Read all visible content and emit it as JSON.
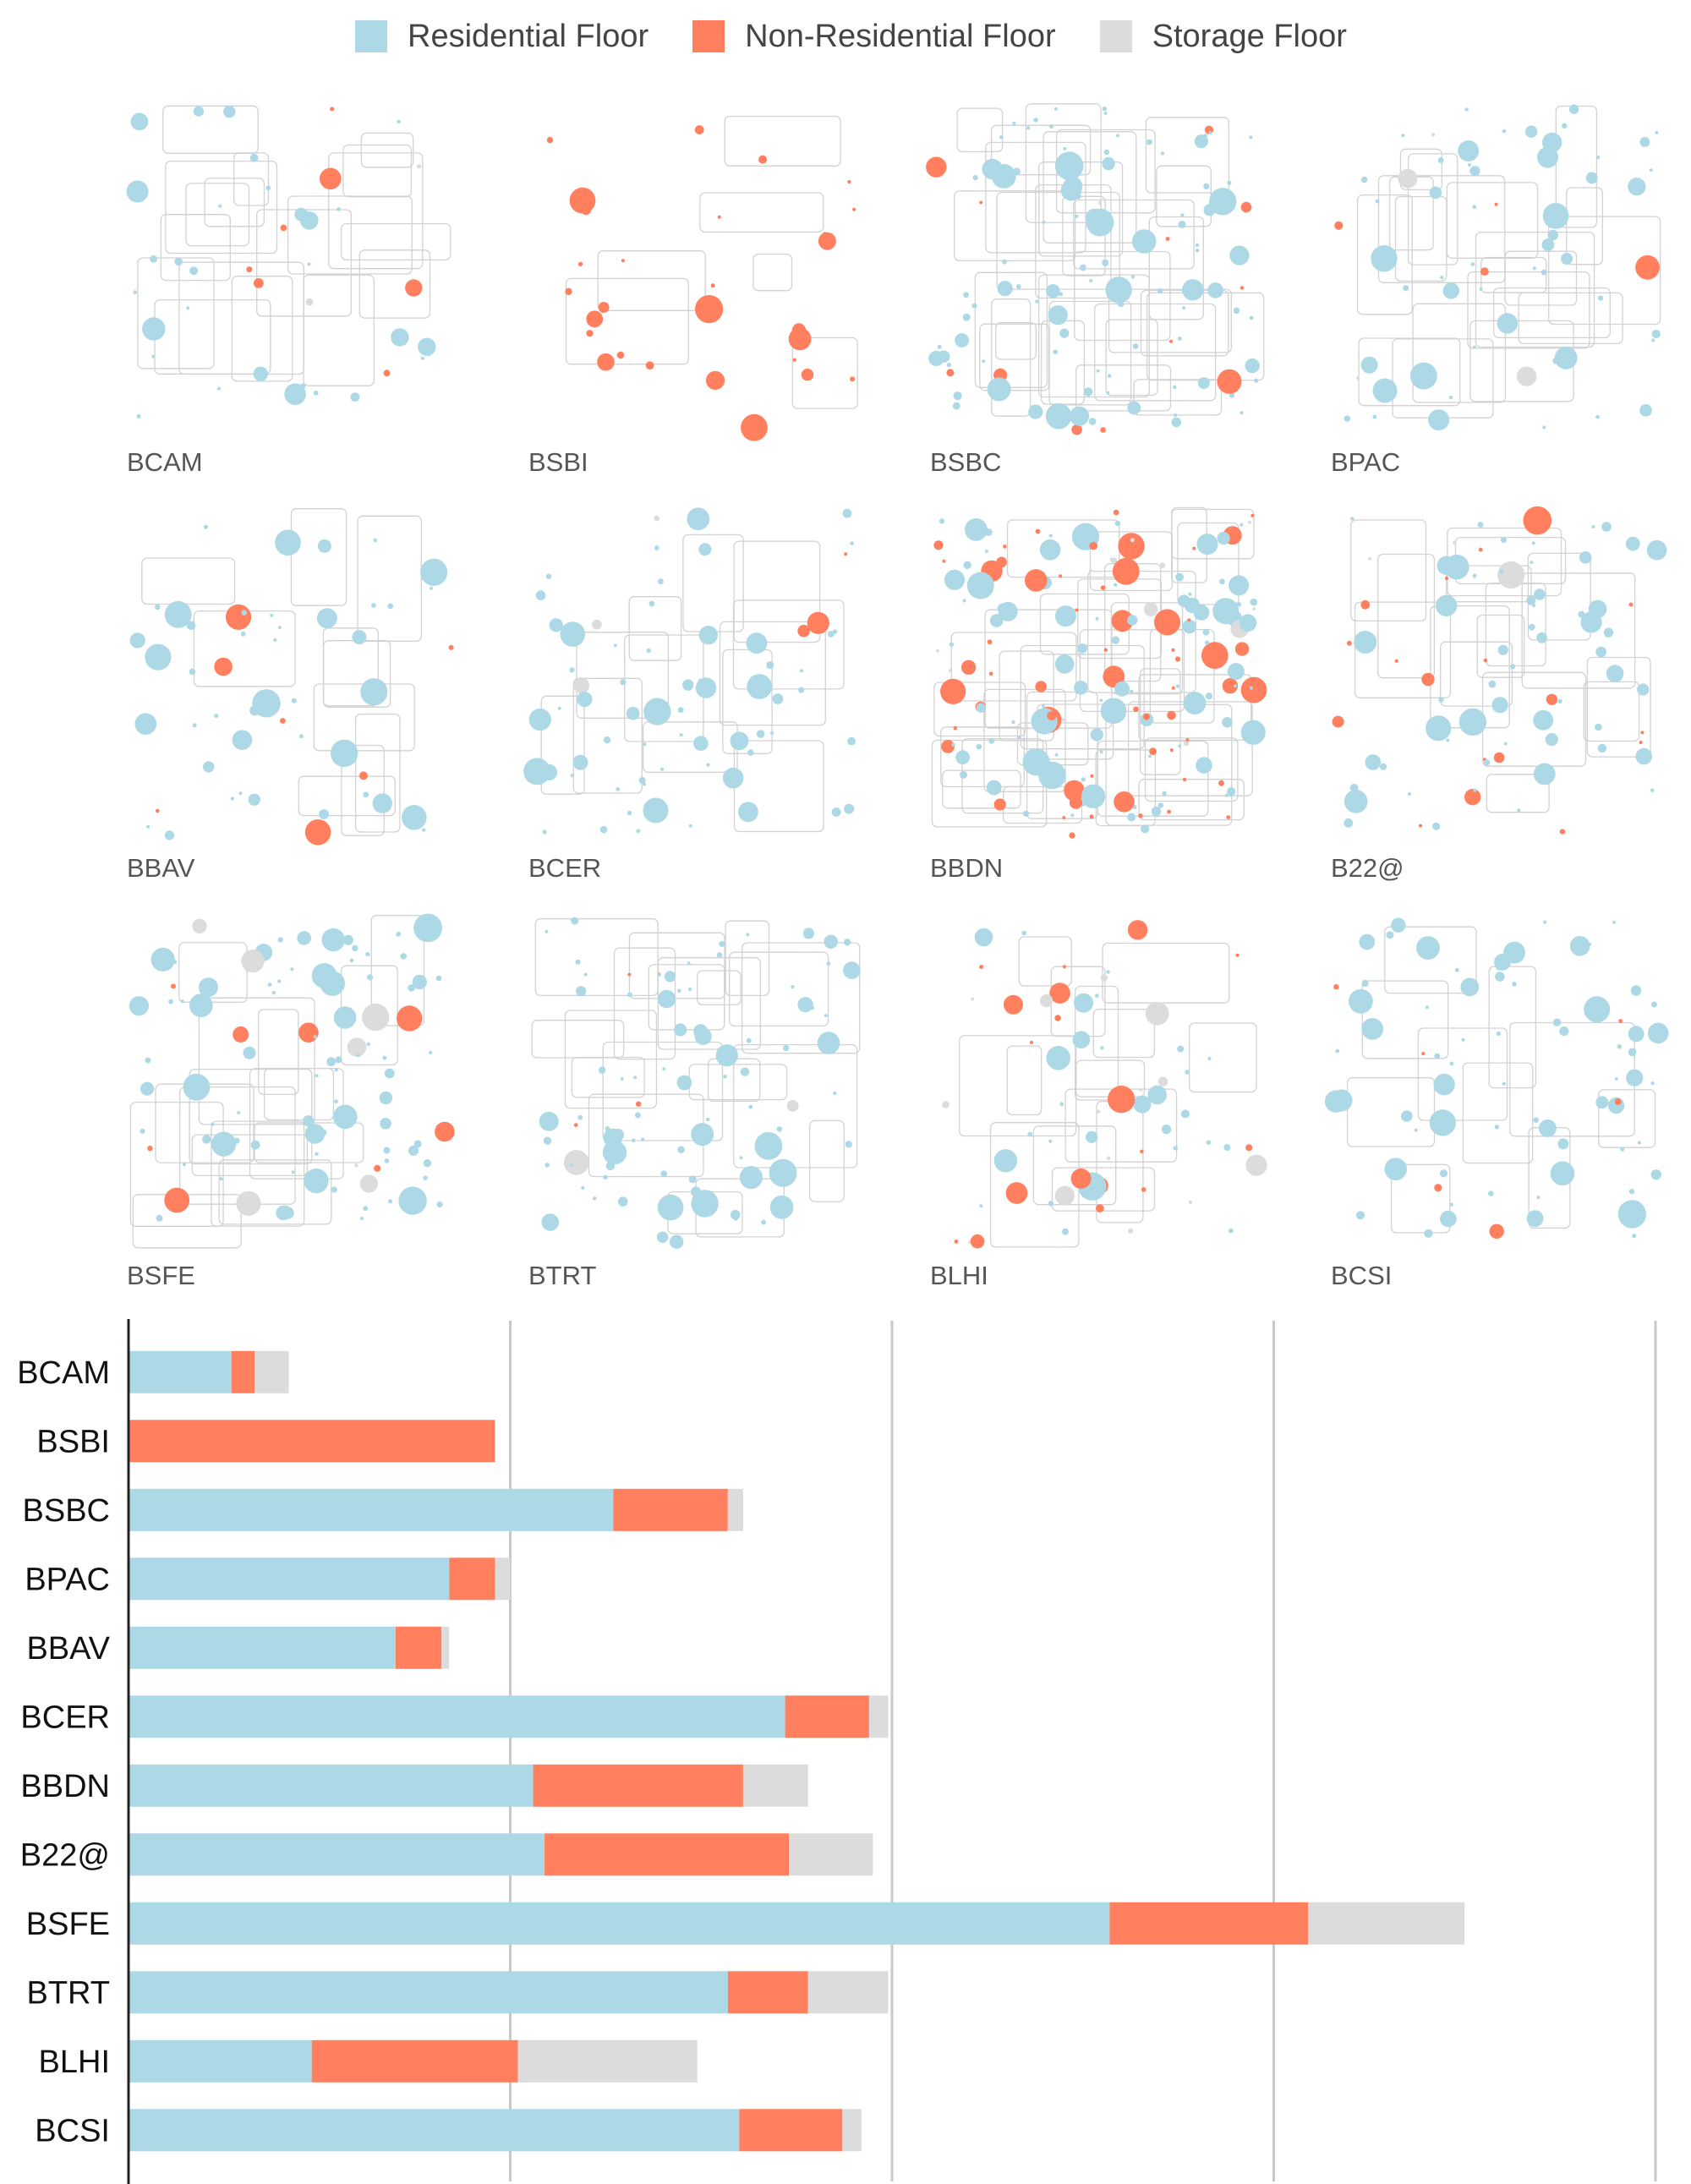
{
  "legend": [
    {
      "label": "Residential Floor",
      "color": "#add8e6"
    },
    {
      "label": "Non-Residential Floor",
      "color": "#ff7f5e"
    },
    {
      "label": "Storage Floor",
      "color": "#dcdcdc"
    }
  ],
  "colors": {
    "residential": "#add8e6",
    "non_residential": "#ff7f5e",
    "storage": "#dcdcdc",
    "grid": "#c8c8c8",
    "axis": "#222222"
  },
  "chart_data": [
    {
      "type": "map-grid",
      "title": "",
      "panels": [
        {
          "name": "BCAM",
          "residential_share": 0.88,
          "non_residential_share": 0.08,
          "storage_share": 0.04
        },
        {
          "name": "BSBI",
          "residential_share": 0.0,
          "non_residential_share": 1.0,
          "storage_share": 0.0
        },
        {
          "name": "BSBC",
          "residential_share": 0.87,
          "non_residential_share": 0.11,
          "storage_share": 0.02
        },
        {
          "name": "BPAC",
          "residential_share": 0.88,
          "non_residential_share": 0.09,
          "storage_share": 0.03
        },
        {
          "name": "BBAV",
          "residential_share": 0.85,
          "non_residential_share": 0.13,
          "storage_share": 0.02
        },
        {
          "name": "BCER",
          "residential_share": 0.89,
          "non_residential_share": 0.09,
          "storage_share": 0.02
        },
        {
          "name": "BBDN",
          "residential_share": 0.6,
          "non_residential_share": 0.34,
          "storage_share": 0.06
        },
        {
          "name": "B22@",
          "residential_share": 0.71,
          "non_residential_share": 0.22,
          "storage_share": 0.07
        },
        {
          "name": "BSFE",
          "residential_share": 0.82,
          "non_residential_share": 0.1,
          "storage_share": 0.08
        },
        {
          "name": "BTRT",
          "residential_share": 0.85,
          "non_residential_share": 0.07,
          "storage_share": 0.08
        },
        {
          "name": "BLHI",
          "residential_share": 0.45,
          "non_residential_share": 0.4,
          "storage_share": 0.15
        },
        {
          "name": "BCSI",
          "residential_share": 0.89,
          "non_residential_share": 0.09,
          "storage_share": 0.02
        }
      ]
    },
    {
      "type": "bar",
      "stacked": true,
      "orientation": "horizontal",
      "title": "",
      "xlabel": "",
      "ylabel": "",
      "xlim": [
        0,
        400
      ],
      "grid_lines_at": [
        100,
        200,
        300,
        400
      ],
      "categories": [
        "BCAM",
        "BSBI",
        "BSBC",
        "BPAC",
        "BBAV",
        "BCER",
        "BBDN",
        "B22@",
        "BSFE",
        "BTRT",
        "BLHI",
        "BCSI"
      ],
      "series": [
        {
          "name": "Residential Floor",
          "values": [
            27,
            0,
            127,
            84,
            70,
            172,
            106,
            109,
            257,
            157,
            48,
            160
          ]
        },
        {
          "name": "Non-Residential Floor",
          "values": [
            6,
            96,
            30,
            12,
            12,
            22,
            55,
            64,
            52,
            21,
            54,
            27
          ]
        },
        {
          "name": "Storage Floor",
          "values": [
            9,
            0,
            4,
            4,
            2,
            5,
            17,
            22,
            41,
            21,
            47,
            5
          ]
        }
      ]
    }
  ]
}
